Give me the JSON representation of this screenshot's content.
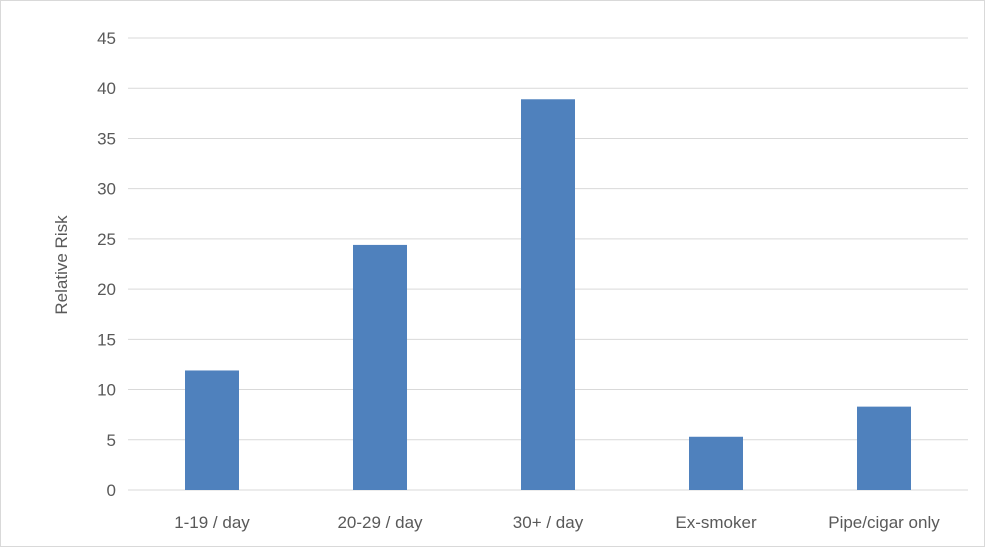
{
  "chart_data": {
    "type": "bar",
    "title": "",
    "xlabel": "",
    "ylabel": "Relative Risk",
    "categories": [
      "1-19 / day",
      "20-29 / day",
      "30+ / day",
      "Ex-smoker",
      "Pipe/cigar only"
    ],
    "values": [
      11.9,
      24.4,
      38.9,
      5.3,
      8.3
    ],
    "ylim": [
      0,
      45
    ],
    "yticks": [
      0,
      5,
      10,
      15,
      20,
      25,
      30,
      35,
      40,
      45
    ],
    "grid": true,
    "legend": "none",
    "bar_color": "#4f81bd",
    "grid_color": "#d9d9d9"
  }
}
